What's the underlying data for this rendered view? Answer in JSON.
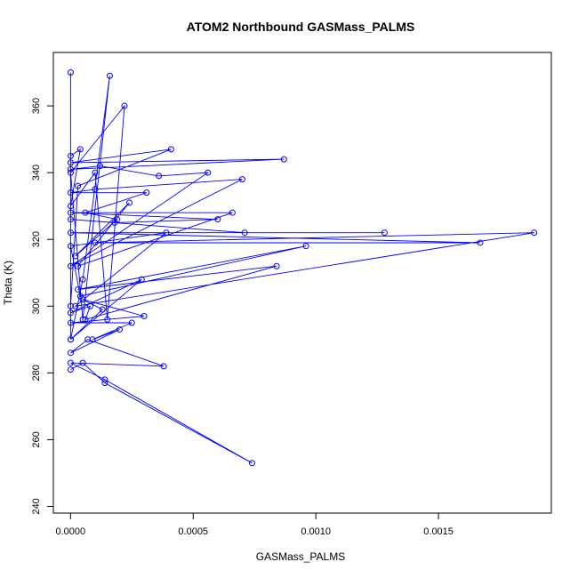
{
  "chart_data": {
    "type": "line",
    "title": "ATOM2 Northbound GASMass_PALMS",
    "xlabel": "GASMass_PALMS",
    "ylabel": "Theta (K)",
    "xlim": [
      -7e-05,
      0.00196
    ],
    "ylim": [
      238,
      376
    ],
    "x_ticks": [
      0.0,
      0.0005,
      0.001,
      0.0015
    ],
    "x_tick_labels": [
      "0.0000",
      "0.0005",
      "0.0010",
      "0.0015"
    ],
    "y_ticks": [
      240,
      260,
      280,
      300,
      320,
      340,
      360
    ],
    "y_tick_labels": [
      "240",
      "260",
      "280",
      "300",
      "320",
      "340",
      "360"
    ],
    "grid": false,
    "line_style": "overplotted line with open circle markers",
    "series": [
      {
        "color": "#0000ff",
        "x": [
          5e-07,
          5e-07,
          5e-05,
          0.00016,
          5e-05,
          5e-07,
          0.00022,
          0.00015,
          0.0001,
          5e-07,
          4e-05,
          5e-07,
          5e-07,
          3e-05,
          0.00041,
          5e-07,
          0.00087,
          5e-07,
          0.00012,
          0.00036,
          0.00056,
          5e-07,
          0.0007,
          0.0001,
          5e-07,
          0.00031,
          6e-05,
          0.00019,
          2e-05,
          0.00024,
          3e-05,
          0.00066,
          5e-07,
          0.0006,
          0.00018,
          5e-07,
          0.00071,
          0.00128,
          5e-07,
          0.00167,
          0.0001,
          0.00189,
          2e-05,
          0.00039,
          5e-07,
          4e-05,
          0.00096,
          3e-05,
          0.00084,
          6e-05,
          8e-05,
          5e-07,
          0.00029,
          5e-07,
          0.00013,
          5e-05,
          0.0003,
          5e-07,
          0.00025,
          9e-05,
          0.0002,
          5e-07,
          7e-05,
          0.00038,
          5e-07,
          0.00014,
          0.00074,
          0.00014,
          5e-05,
          5e-07
        ],
        "y": [
          370,
          290,
          308,
          369,
          296,
          340,
          360,
          296,
          340,
          330,
          347,
          345,
          300,
          336,
          347,
          343,
          344,
          341,
          342,
          339,
          340,
          312,
          338,
          335,
          334,
          334,
          328,
          326,
          315,
          331,
          312,
          328,
          328,
          326,
          325,
          326,
          322,
          322,
          322,
          319,
          319,
          322,
          300,
          322,
          318,
          303,
          318,
          305,
          312,
          296,
          300,
          298,
          308,
          290,
          299,
          302,
          297,
          295,
          295,
          290,
          293,
          286,
          290,
          282,
          283,
          278,
          253,
          277,
          283,
          281
        ]
      }
    ]
  }
}
